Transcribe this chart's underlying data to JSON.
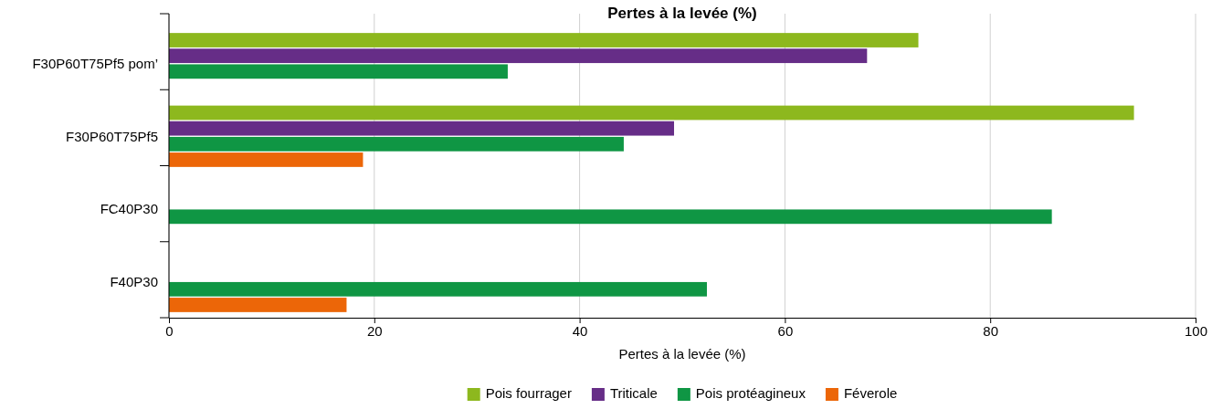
{
  "chart_data": {
    "type": "bar",
    "orientation": "horizontal",
    "title": "Pertes à la levée (%)",
    "xlabel": "Pertes à la levée (%)",
    "categories": [
      "F30P60T75Pf5 pom’",
      "F30P60T75Pf5",
      "FC40P30",
      "F40P30"
    ],
    "series": [
      {
        "name": "Pois fourrager",
        "color": "#8db81e",
        "values": [
          73,
          94,
          null,
          null
        ]
      },
      {
        "name": "Triticale",
        "color": "#662d87",
        "values": [
          68,
          49.2,
          null,
          null
        ]
      },
      {
        "name": "Pois protéagineux",
        "color": "#0f9644",
        "values": [
          33,
          44.3,
          86,
          52.4
        ]
      },
      {
        "name": "Féverole",
        "color": "#ec6608",
        "values": [
          null,
          18.9,
          null,
          17.3
        ]
      }
    ],
    "xlim": [
      0,
      100
    ],
    "xticks": [
      0,
      20,
      40,
      60,
      80,
      100
    ],
    "grid": "x",
    "legend": "bottom"
  }
}
